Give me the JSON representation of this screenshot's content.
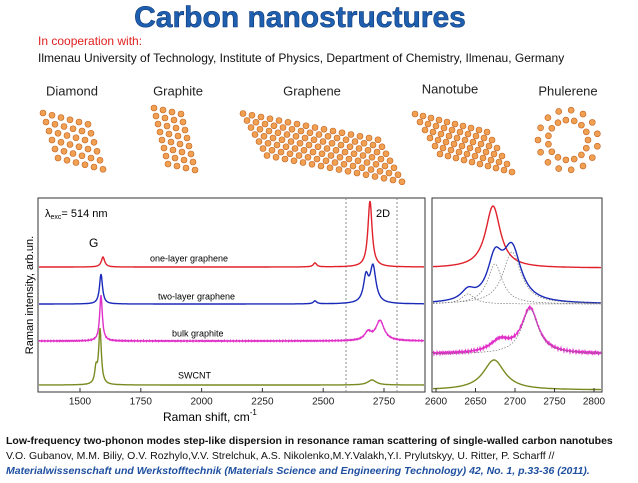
{
  "header": {
    "title": "Carbon nanostructures",
    "cooperation": "In cooperation with:",
    "affiliation": "Ilmenau University of Technology, Institute of Physics, Department of Chemistry, Ilmenau, Germany"
  },
  "materials": [
    "Diamond",
    "Graphite",
    "Graphene",
    "Nanotube",
    "Phulerene"
  ],
  "spectrum": {
    "excitation": {
      "symbol": "λ",
      "subscript": "exc",
      "text": "= 514 nm"
    },
    "peaks": [
      "G",
      "2D"
    ],
    "curves": [
      "one-layer graphene",
      "two-layer graphene",
      "bulk graphite",
      "SWCNT"
    ],
    "y_label": "Raman intensity, arb.un.",
    "x_label": {
      "text": "Raman shift, cm",
      "superscript": "-1"
    },
    "xticks": [
      1500,
      1750,
      2000,
      2250,
      2500,
      2750
    ],
    "zoom_xticks": [
      2600,
      2650,
      2700,
      2750,
      2800
    ]
  },
  "caption": {
    "title": "Low-frequency two-phonon modes step-like dispersion in resonance raman scattering of single-walled carbon nanotubes",
    "authors": "V.O. Gubanov, M.M. Biliy, O.V. Rozhylo,V.V. Strelchuk, A.S. Nikolenko,M.Y.Valakh,Y.I. Prylutskyy, U. Ritter, P. Scharff //",
    "journal": "Materialwissenschaft und Werkstofftechnik (Materials Science and Engineering Technology) 42, No. 1, p.33-36 (2011)."
  }
}
